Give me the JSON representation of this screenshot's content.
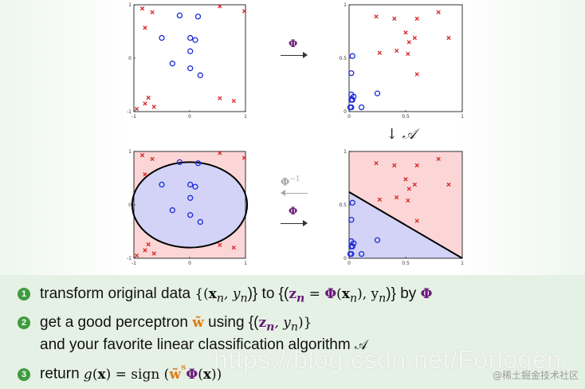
{
  "plots": {
    "original": {
      "x_ticks": [
        "-1",
        "0",
        "1"
      ],
      "y_ticks": [
        "-1",
        "0",
        "1"
      ],
      "crosses": [
        [
          -0.85,
          0.93
        ],
        [
          -0.67,
          0.86
        ],
        [
          -0.8,
          0.57
        ],
        [
          0.54,
          0.97
        ],
        [
          0.98,
          0.88
        ],
        [
          0.54,
          -0.75
        ],
        [
          0.79,
          -0.8
        ],
        [
          -0.74,
          -0.74
        ],
        [
          -0.8,
          -0.85
        ],
        [
          -0.64,
          -0.91
        ],
        [
          -0.95,
          -0.95
        ]
      ],
      "circles": [
        [
          -0.18,
          0.8
        ],
        [
          0.15,
          0.78
        ],
        [
          -0.5,
          0.38
        ],
        [
          0.01,
          0.38
        ],
        [
          0.1,
          0.34
        ],
        [
          0.01,
          0.13
        ],
        [
          -0.31,
          -0.1
        ],
        [
          0.01,
          -0.19
        ],
        [
          0.19,
          -0.32
        ]
      ]
    },
    "transformed": {
      "x_ticks": [
        "0",
        "0.5",
        "1"
      ],
      "y_ticks": [
        "0",
        "0.5",
        "1"
      ],
      "crosses": [
        [
          0.24,
          0.89
        ],
        [
          0.4,
          0.87
        ],
        [
          0.6,
          0.87
        ],
        [
          0.79,
          0.93
        ],
        [
          0.5,
          0.74
        ],
        [
          0.58,
          0.69
        ],
        [
          0.53,
          0.65
        ],
        [
          0.27,
          0.55
        ],
        [
          0.42,
          0.57
        ],
        [
          0.52,
          0.54
        ],
        [
          0.88,
          0.69
        ],
        [
          0.6,
          0.35
        ]
      ],
      "circles": [
        [
          0.03,
          0.52
        ],
        [
          0.02,
          0.36
        ],
        [
          0.02,
          0.16
        ],
        [
          0.04,
          0.14
        ],
        [
          0.02,
          0.11
        ],
        [
          0.03,
          0.11
        ],
        [
          0.01,
          0.04
        ],
        [
          0.02,
          0.04
        ],
        [
          0.25,
          0.17
        ],
        [
          0.11,
          0.04
        ]
      ]
    },
    "original_classified": {
      "x_ticks": [
        "-1",
        "0",
        "1"
      ],
      "y_ticks": [
        "-1",
        "0",
        "1"
      ],
      "ellipse": {
        "cx": 0,
        "cy": 0,
        "rx": 1.03,
        "ry": 0.8
      },
      "crosses": [
        [
          -0.85,
          0.93
        ],
        [
          -0.67,
          0.86
        ],
        [
          -0.8,
          0.57
        ],
        [
          0.54,
          0.97
        ],
        [
          0.98,
          0.88
        ],
        [
          0.54,
          -0.75
        ],
        [
          0.79,
          -0.8
        ],
        [
          -0.74,
          -0.74
        ],
        [
          -0.8,
          -0.85
        ],
        [
          -0.64,
          -0.91
        ],
        [
          -0.95,
          -0.95
        ]
      ],
      "circles": [
        [
          -0.18,
          0.8
        ],
        [
          0.15,
          0.78
        ],
        [
          -0.5,
          0.38
        ],
        [
          0.01,
          0.38
        ],
        [
          0.1,
          0.34
        ],
        [
          0.01,
          0.13
        ],
        [
          -0.31,
          -0.1
        ],
        [
          0.01,
          -0.19
        ],
        [
          0.19,
          -0.32
        ]
      ]
    },
    "transformed_classified": {
      "x_ticks": [
        "0",
        "0.5",
        "1"
      ],
      "y_ticks": [
        "0",
        "0.5",
        "1"
      ],
      "boundary": [
        [
          0,
          0.62
        ],
        [
          1,
          0
        ]
      ],
      "crosses": [
        [
          0.24,
          0.89
        ],
        [
          0.4,
          0.87
        ],
        [
          0.6,
          0.87
        ],
        [
          0.79,
          0.93
        ],
        [
          0.5,
          0.74
        ],
        [
          0.58,
          0.69
        ],
        [
          0.53,
          0.65
        ],
        [
          0.27,
          0.55
        ],
        [
          0.42,
          0.57
        ],
        [
          0.52,
          0.54
        ],
        [
          0.88,
          0.69
        ],
        [
          0.6,
          0.35
        ]
      ],
      "circles": [
        [
          0.03,
          0.52
        ],
        [
          0.02,
          0.36
        ],
        [
          0.02,
          0.16
        ],
        [
          0.04,
          0.14
        ],
        [
          0.02,
          0.11
        ],
        [
          0.03,
          0.11
        ],
        [
          0.01,
          0.04
        ],
        [
          0.02,
          0.04
        ],
        [
          0.25,
          0.17
        ],
        [
          0.11,
          0.04
        ]
      ]
    }
  },
  "colors": {
    "cross": "#d62828",
    "circle": "#1c2bd8",
    "region_red": "#fcd6d6",
    "region_blue": "#d2d3f6",
    "phi_purple": "#6a1b7a",
    "step_green": "#3e9b3e",
    "tilde_orange": "#e07a10"
  },
  "arrows": {
    "phi_top": "Φ",
    "down_a": "↓ 𝒜",
    "phi_inverse": "Φ",
    "phi_inverse_exp": "−1",
    "phi_bottom": "Φ"
  },
  "steps": [
    {
      "num": "1",
      "a": "transform original data ",
      "b": "{(",
      "c": "x",
      "d": "n",
      "e": ", y",
      "f": "n",
      "g": ")} to {(",
      "h": "z",
      "i": "n",
      "j": " = ",
      "k": "Φ",
      "l": "(",
      "m": "x",
      "n2": "n",
      "o": "), y",
      "p": "n",
      "q": ")} by ",
      "r": "Φ"
    },
    {
      "num": "2",
      "a": "get a good perceptron ",
      "b": "w̃",
      "c": " using {(",
      "d": "z",
      "e": "n",
      "f": ", y",
      "g": "n",
      "h": ")}"
    },
    {
      "line": "and your favorite linear classification algorithm ",
      "alg": "𝒜"
    },
    {
      "num": "3",
      "a": "return ",
      "b": "g",
      "c": "(",
      "d": "x",
      "e": ") = sign (",
      "f": "w̃",
      "g": "ᵀ",
      "h": "Φ",
      "i": "(",
      "j": "x",
      "k": "))"
    }
  ],
  "watermark": "https://blog.csdn.net/Forlogen",
  "brand": "@稀土掘金技术社区"
}
